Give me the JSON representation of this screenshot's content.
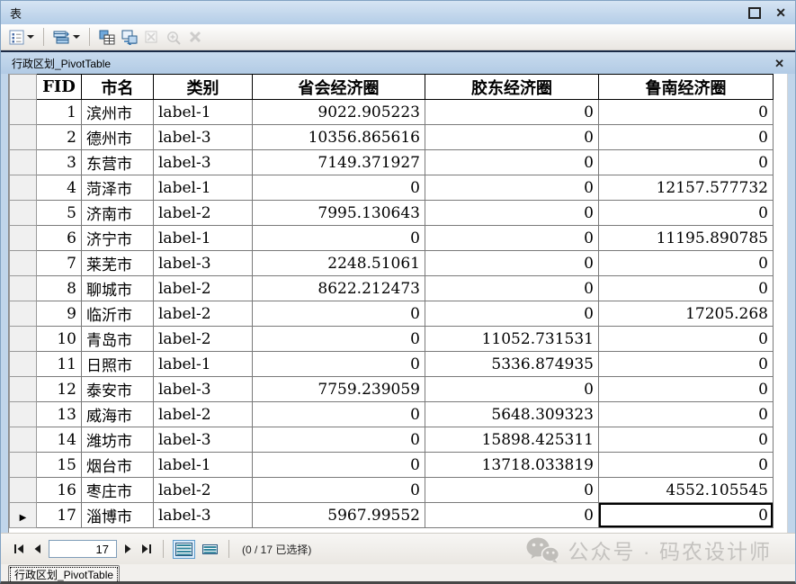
{
  "window": {
    "title": "表"
  },
  "toolbar": {
    "icons": [
      "table-options-icon",
      "related-tables-icon",
      "select-by-attributes-icon",
      "switch-selection-icon",
      "clear-selection-icon",
      "zoom-to-selected-icon",
      "delete-selected-icon"
    ]
  },
  "sheet_tab": {
    "title": "行政区划_PivotTable"
  },
  "table": {
    "columns": [
      "FID",
      "市名",
      "类别",
      "省会经济圈",
      "胶东经济圈",
      "鲁南经济圈"
    ],
    "rows": [
      [
        "1",
        "滨州市",
        "label-1",
        "9022.905223",
        "0",
        "0"
      ],
      [
        "2",
        "德州市",
        "label-3",
        "10356.865616",
        "0",
        "0"
      ],
      [
        "3",
        "东营市",
        "label-3",
        "7149.371927",
        "0",
        "0"
      ],
      [
        "4",
        "菏泽市",
        "label-1",
        "0",
        "0",
        "12157.577732"
      ],
      [
        "5",
        "济南市",
        "label-2",
        "7995.130643",
        "0",
        "0"
      ],
      [
        "6",
        "济宁市",
        "label-1",
        "0",
        "0",
        "11195.890785"
      ],
      [
        "7",
        "莱芜市",
        "label-3",
        "2248.51061",
        "0",
        "0"
      ],
      [
        "8",
        "聊城市",
        "label-2",
        "8622.212473",
        "0",
        "0"
      ],
      [
        "9",
        "临沂市",
        "label-2",
        "0",
        "0",
        "17205.268"
      ],
      [
        "10",
        "青岛市",
        "label-2",
        "0",
        "11052.731531",
        "0"
      ],
      [
        "11",
        "日照市",
        "label-1",
        "0",
        "5336.874935",
        "0"
      ],
      [
        "12",
        "泰安市",
        "label-3",
        "7759.239059",
        "0",
        "0"
      ],
      [
        "13",
        "威海市",
        "label-2",
        "0",
        "5648.309323",
        "0"
      ],
      [
        "14",
        "潍坊市",
        "label-3",
        "0",
        "15898.425311",
        "0"
      ],
      [
        "15",
        "烟台市",
        "label-1",
        "0",
        "13718.033819",
        "0"
      ],
      [
        "16",
        "枣庄市",
        "label-2",
        "0",
        "0",
        "4552.105545"
      ],
      [
        "17",
        "淄博市",
        "label-3",
        "5967.99552",
        "0",
        "0"
      ]
    ],
    "current_row_index": 16,
    "selected_cell": {
      "row_index": 16,
      "col_index": 5,
      "column": "鲁南经济圈",
      "value": "0"
    }
  },
  "record_nav": {
    "current": "17",
    "status": "(0 / 17 已选择)",
    "icons": [
      "first-record-icon",
      "previous-record-icon",
      "next-record-icon",
      "last-record-icon",
      "show-all-records-icon",
      "show-selected-records-icon"
    ]
  },
  "bottom_tab": {
    "label": "行政区划_PivotTable"
  },
  "watermark": {
    "text": "公众号 · 码农设计师",
    "icon": "wechat-icon"
  },
  "colors": {
    "titlebar_blue": "#bcd4ec",
    "navy_line": "#1b2a45",
    "stripe_teal": "#31859c",
    "active_view_border": "#5c9ccc",
    "selection_outline": "#000000"
  }
}
